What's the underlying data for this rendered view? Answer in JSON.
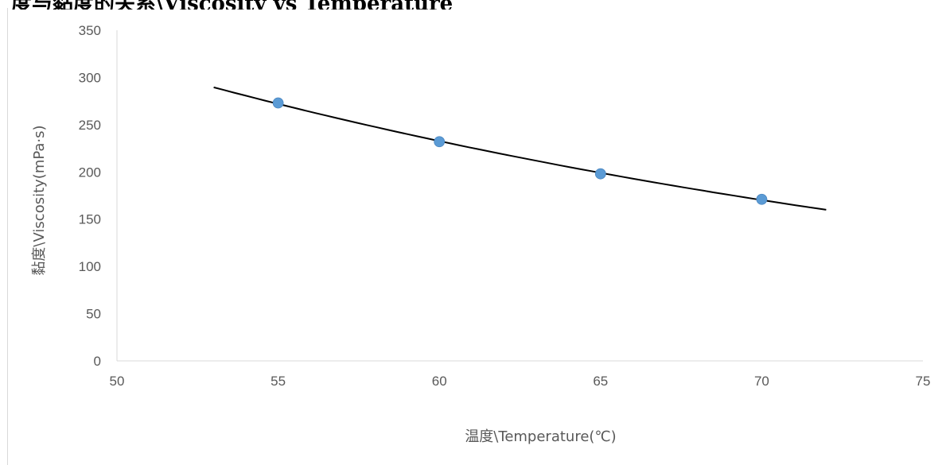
{
  "header": {
    "partial_text": "度与黏度的关系\\Viscosity vs Temperature"
  },
  "chart_data": {
    "type": "scatter",
    "title": "",
    "xlabel": "温度\\Temperature(℃)",
    "ylabel": "黏度\\Viscosity(mPa·s)",
    "xlim": [
      50,
      75
    ],
    "ylim": [
      0,
      350
    ],
    "x_ticks": [
      50,
      55,
      60,
      65,
      70,
      75
    ],
    "y_ticks": [
      0,
      50,
      100,
      150,
      200,
      250,
      300,
      350
    ],
    "grid": false,
    "legend": "none",
    "series": [
      {
        "points": [
          {
            "x": 55,
            "y": 273
          },
          {
            "x": 60,
            "y": 232
          },
          {
            "x": 65,
            "y": 198
          },
          {
            "x": 70,
            "y": 171
          }
        ],
        "color": "#5b9bd5"
      }
    ],
    "trendline": {
      "type": "exponential",
      "x_range": [
        53,
        72
      ],
      "points": [
        {
          "x": 53,
          "y": 292
        },
        {
          "x": 55,
          "y": 273
        },
        {
          "x": 60,
          "y": 232
        },
        {
          "x": 65,
          "y": 198
        },
        {
          "x": 70,
          "y": 171
        },
        {
          "x": 72,
          "y": 162
        }
      ],
      "color": "#000000"
    }
  }
}
